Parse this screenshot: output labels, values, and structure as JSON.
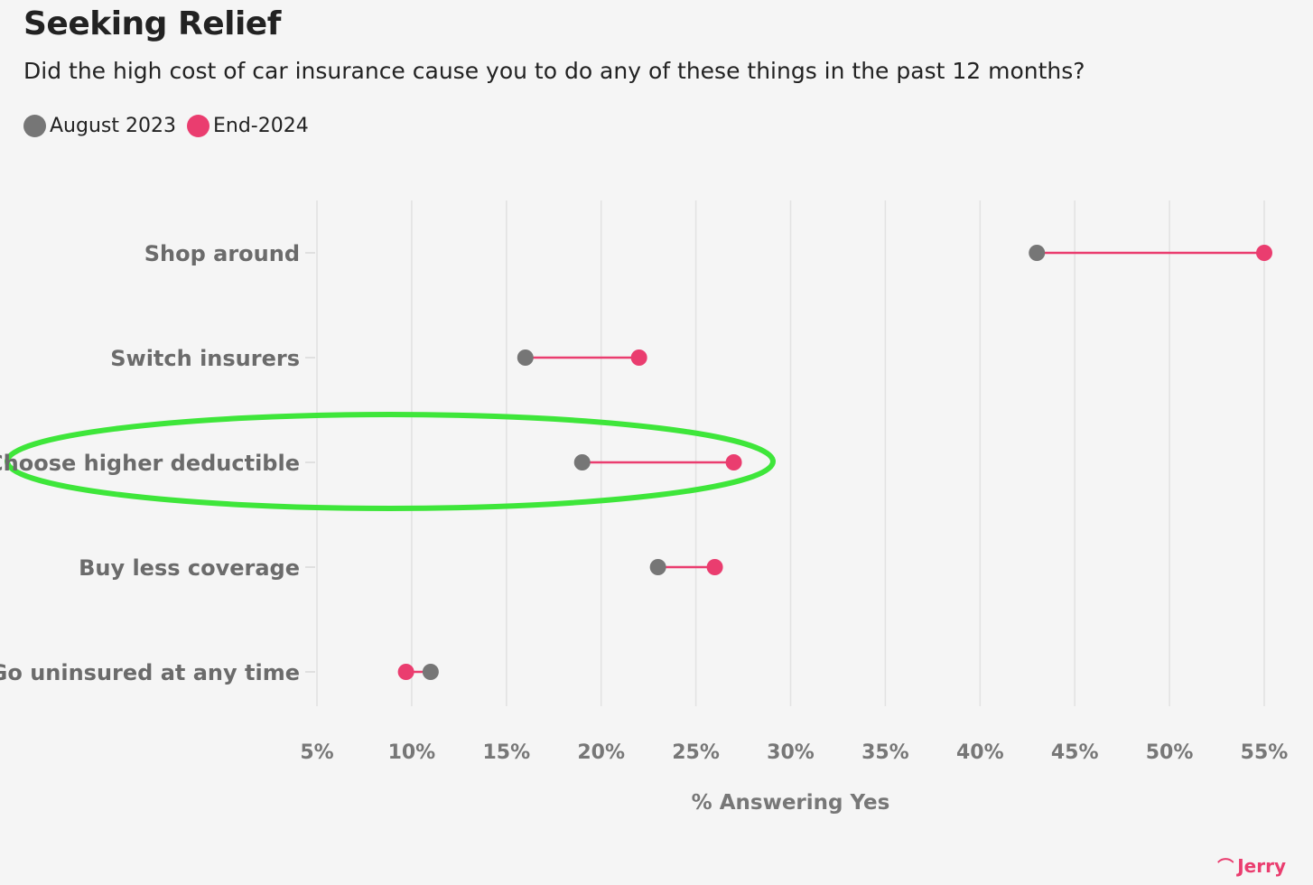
{
  "title": "Seeking Relief",
  "subtitle": "Did the high cost of car insurance cause you to do any of these things in the past 12 months?",
  "legend": [
    {
      "label": "August 2023",
      "color": "#767676"
    },
    {
      "label": "End-2024",
      "color": "#ea3d6f"
    }
  ],
  "brand": {
    "name": "Jerry",
    "color": "#ea3d6f"
  },
  "highlight": {
    "category": "Choose higher deductible",
    "color": "#3ee63a"
  },
  "chart_data": {
    "type": "dumbbell",
    "title": "Seeking Relief",
    "subtitle": "Did the high cost of car insurance cause you to do any of these things in the past 12 months?",
    "categories": [
      "Shop around",
      "Switch insurers",
      "Choose higher deductible",
      "Buy less coverage",
      "Go uninsured at any time"
    ],
    "series": [
      {
        "name": "August 2023",
        "values": [
          43,
          16,
          19,
          23,
          11
        ]
      },
      {
        "name": "End-2024",
        "values": [
          55,
          22,
          27,
          26,
          9.7
        ]
      }
    ],
    "xlabel": "% Answering Yes",
    "ylabel": "",
    "xlim": [
      5,
      55
    ],
    "xticks": [
      5,
      10,
      15,
      20,
      25,
      30,
      35,
      40,
      45,
      50,
      55
    ],
    "tick_format": "%",
    "grid": true,
    "legend_position": "top-left"
  }
}
